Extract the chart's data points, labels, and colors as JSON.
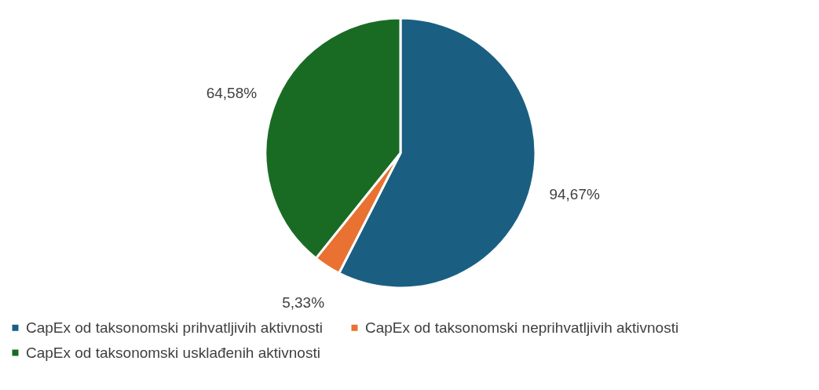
{
  "chart_data": {
    "type": "pie",
    "categories": [
      "CapEx od taksonomski prihvatljivih aktivnosti",
      "CapEx od taksonomski neprihvatljivih aktivnosti",
      "CapEx od taksonomski usklađenih aktivnosti"
    ],
    "values": [
      94.67,
      5.33,
      64.58
    ],
    "value_labels": [
      "94,67%",
      "5,33%",
      "64,58%"
    ],
    "colors": [
      "#1a5f82",
      "#e97132",
      "#196b24"
    ],
    "legend": "bottom"
  }
}
